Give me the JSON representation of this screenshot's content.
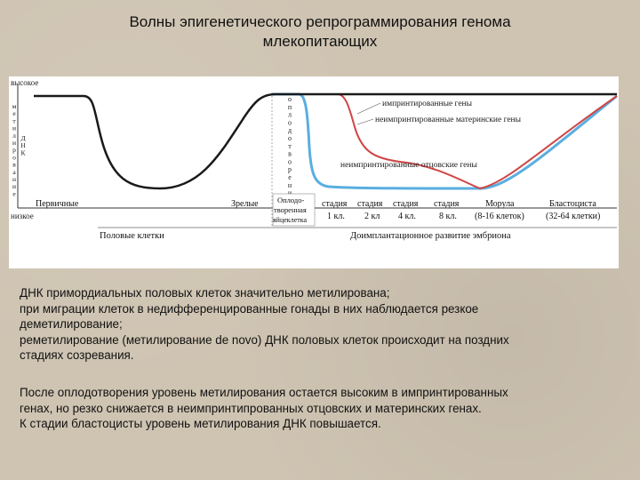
{
  "title": {
    "line1": "Волны эпигенетического репрограммирования генома",
    "line2": "млекопитающих"
  },
  "figure": {
    "y_axis": {
      "top_label": "высокое",
      "bottom_label": "низкое",
      "vertical_label": [
        "м",
        "е",
        "т",
        "и",
        "л",
        "и",
        "р",
        "о",
        "в",
        "а",
        "н",
        "и",
        "е"
      ],
      "vertical_label2": [
        "Д",
        "Н",
        "К"
      ]
    },
    "fertilization_label": [
      "о",
      "п",
      "л",
      "о",
      "д",
      "о",
      "т",
      "в",
      "о",
      "р",
      "е",
      "н",
      "и",
      "е"
    ],
    "curve_labels": {
      "imprinted": "импринтированные гены",
      "maternal": "неимпринтированные материнские гены",
      "paternal": "неимпринтированные отцовские гены"
    },
    "x_labels": {
      "primary": "Первичные",
      "mature": "Зрелые",
      "zygote_line1": "Оплодо-",
      "zygote_line2": "творенная",
      "zygote_line3": "яйцеклетка",
      "stages": [
        {
          "top": "стадия",
          "bottom": "1 кл."
        },
        {
          "top": "стадия",
          "bottom": "2 кл"
        },
        {
          "top": "стадия",
          "bottom": "4 кл."
        },
        {
          "top": "стадия",
          "bottom": "8 кл."
        }
      ],
      "morula": "Морула",
      "morula_cells": "(8-16 клеток)",
      "blastocyst": "Бластоциста",
      "blastocyst_cells": "(32-64 клетки)"
    },
    "section_labels": {
      "germ_cells": "Половые клетки",
      "embryo": "Доимплантационное развитие эмбриона"
    },
    "colors": {
      "imprinted": "#1a1a1a",
      "maternal": "#d04545",
      "paternal": "#5aaee0",
      "axis": "#333333"
    }
  },
  "paragraph1": [
    "ДНК примордиальных половых клеток значительно метилирована;",
    "при миграции клеток в недифференцированные гонады в них наблюдается резкое",
    "деметилирование;",
    "реметилирование (метилирование de novo) ДНК половых клеток происходит на поздних",
    "стадиях созревания."
  ],
  "paragraph2": [
    "После оплодотворения уровень метилирования остается высоким в импринтированных",
    "генах, но резко снижается в неимпринтипрованных отцовских и материнских генах.",
    "К стадии бластоцисты уровень метилирования ДНК повышается."
  ]
}
